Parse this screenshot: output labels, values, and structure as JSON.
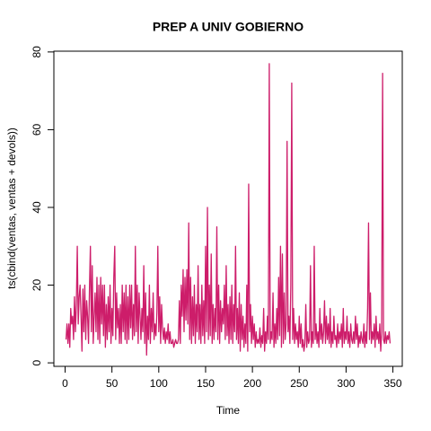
{
  "chart_data": {
    "type": "line",
    "title": "PREP A UNIV GOBIERNO",
    "xlabel": "Time",
    "ylabel": "ts(cbind(ventas, ventas + devols))",
    "color": "#cd1d6a",
    "xlim": [
      -12,
      360
    ],
    "ylim": [
      -0.9,
      80.2
    ],
    "xticks": [
      0,
      50,
      100,
      150,
      200,
      250,
      300,
      350
    ],
    "yticks": [
      0,
      20,
      40,
      60,
      80
    ],
    "x": [
      1,
      2,
      3,
      4,
      5,
      6,
      7,
      8,
      9,
      10,
      11,
      12,
      13,
      14,
      15,
      16,
      17,
      18,
      19,
      20,
      21,
      22,
      23,
      24,
      25,
      26,
      27,
      28,
      29,
      30,
      31,
      32,
      33,
      34,
      35,
      36,
      37,
      38,
      39,
      40,
      41,
      42,
      43,
      44,
      45,
      46,
      47,
      48,
      49,
      50,
      51,
      52,
      53,
      54,
      55,
      56,
      57,
      58,
      59,
      60,
      61,
      62,
      63,
      64,
      65,
      66,
      67,
      68,
      69,
      70,
      71,
      72,
      73,
      74,
      75,
      76,
      77,
      78,
      79,
      80,
      81,
      82,
      83,
      84,
      85,
      86,
      87,
      88,
      89,
      90,
      91,
      92,
      93,
      94,
      95,
      96,
      97,
      98,
      99,
      100,
      101,
      102,
      103,
      104,
      105,
      106,
      107,
      108,
      109,
      110,
      111,
      112,
      113,
      114,
      115,
      116,
      117,
      118,
      119,
      120,
      121,
      122,
      123,
      124,
      125,
      126,
      127,
      128,
      129,
      130,
      131,
      132,
      133,
      134,
      135,
      136,
      137,
      138,
      139,
      140,
      141,
      142,
      143,
      144,
      145,
      146,
      147,
      148,
      149,
      150,
      151,
      152,
      153,
      154,
      155,
      156,
      157,
      158,
      159,
      160,
      161,
      162,
      163,
      164,
      165,
      166,
      167,
      168,
      169,
      170,
      171,
      172,
      173,
      174,
      175,
      176,
      177,
      178,
      179,
      180,
      181,
      182,
      183,
      184,
      185,
      186,
      187,
      188,
      189,
      190,
      191,
      192,
      193,
      194,
      195,
      196,
      197,
      198,
      199,
      200,
      201,
      202,
      203,
      204,
      205,
      206,
      207,
      208,
      209,
      210,
      211,
      212,
      213,
      214,
      215,
      216,
      217,
      218,
      219,
      220,
      221,
      222,
      223,
      224,
      225,
      226,
      227,
      228,
      229,
      230,
      231,
      232,
      233,
      234,
      235,
      236,
      237,
      238,
      239,
      240,
      241,
      242,
      243,
      244,
      245,
      246,
      247,
      248,
      249,
      250,
      251,
      252,
      253,
      254,
      255,
      256,
      257,
      258,
      259,
      260,
      261,
      262,
      263,
      264,
      265,
      266,
      267,
      268,
      269,
      270,
      271,
      272,
      273,
      274,
      275,
      276,
      277,
      278,
      279,
      280,
      281,
      282,
      283,
      284,
      285,
      286,
      287,
      288,
      289,
      290,
      291,
      292,
      293,
      294,
      295,
      296,
      297,
      298,
      299,
      300,
      301,
      302,
      303,
      304,
      305,
      306,
      307,
      308,
      309,
      310,
      311,
      312,
      313,
      314,
      315,
      316,
      317,
      318,
      319,
      320,
      321,
      322,
      323,
      324,
      325,
      326,
      327,
      328,
      329,
      330,
      331,
      332,
      333,
      334,
      335,
      336,
      337,
      338,
      339,
      340,
      341,
      342,
      343,
      344,
      345,
      346,
      347
    ],
    "values": [
      6,
      10,
      5,
      10,
      4,
      14,
      10,
      12,
      6,
      17,
      8,
      15,
      30,
      10,
      17,
      20,
      12,
      3,
      19,
      8,
      20,
      6,
      16,
      12,
      5,
      19,
      30,
      8,
      25,
      5,
      12,
      18,
      8,
      22,
      6,
      20,
      5,
      22,
      10,
      20,
      7,
      20,
      4,
      15,
      6,
      17,
      8,
      20,
      5,
      14,
      7,
      22,
      30,
      6,
      18,
      9,
      14,
      5,
      15,
      5,
      20,
      8,
      18,
      6,
      20,
      5,
      17,
      6,
      20,
      9,
      20,
      6,
      15,
      7,
      30,
      8,
      20,
      5,
      18,
      12,
      6,
      14,
      8,
      25,
      5,
      18,
      2,
      12,
      6,
      20,
      5,
      14,
      8,
      18,
      6,
      10,
      7,
      13,
      30,
      8,
      17,
      5,
      15,
      9,
      6,
      9,
      5,
      8,
      6,
      10,
      5,
      8,
      5,
      5,
      6,
      4,
      5,
      6,
      5,
      5,
      6,
      16,
      5,
      20,
      12,
      24,
      8,
      22,
      11,
      24,
      10,
      36,
      6,
      22,
      5,
      17,
      7,
      20,
      5,
      15,
      8,
      25,
      6,
      15,
      5,
      20,
      7,
      16,
      5,
      30,
      8,
      40,
      6,
      20,
      7,
      28,
      5,
      15,
      6,
      14,
      8,
      35,
      6,
      20,
      5,
      16,
      8,
      14,
      10,
      20,
      6,
      25,
      7,
      15,
      5,
      17,
      6,
      20,
      5,
      15,
      8,
      30,
      6,
      14,
      5,
      18,
      3,
      15,
      6,
      12,
      4,
      10,
      5,
      20,
      3,
      46,
      8,
      15,
      5,
      12,
      6,
      10,
      4,
      8,
      5,
      6,
      5,
      9,
      4,
      7,
      5,
      14,
      3,
      8,
      5,
      12,
      6,
      77,
      5,
      8,
      6,
      18,
      4,
      10,
      5,
      14,
      6,
      22,
      7,
      30,
      4,
      28,
      5,
      18,
      6,
      10,
      57,
      8,
      12,
      5,
      20,
      72,
      6,
      14,
      5,
      10,
      6,
      8,
      4,
      12,
      5,
      10,
      4,
      6,
      3,
      5,
      15,
      4,
      8,
      5,
      6,
      25,
      4,
      8,
      5,
      30,
      6,
      10,
      5,
      8,
      4,
      14,
      6,
      10,
      5,
      8,
      16,
      5,
      12,
      6,
      10,
      5,
      14,
      4,
      8,
      5,
      12,
      6,
      7,
      4,
      10,
      5,
      8,
      6,
      10,
      4,
      14,
      5,
      8,
      6,
      12,
      5,
      8,
      4,
      10,
      6,
      5,
      8,
      5,
      12,
      6,
      10,
      4,
      7,
      5,
      8,
      6,
      5,
      10,
      4,
      8,
      5,
      14,
      36,
      6,
      18,
      5,
      8,
      6,
      10,
      4,
      12,
      6,
      8,
      5,
      10,
      3,
      8,
      74.5,
      6,
      5,
      8,
      5,
      7,
      6,
      8,
      5
    ]
  }
}
